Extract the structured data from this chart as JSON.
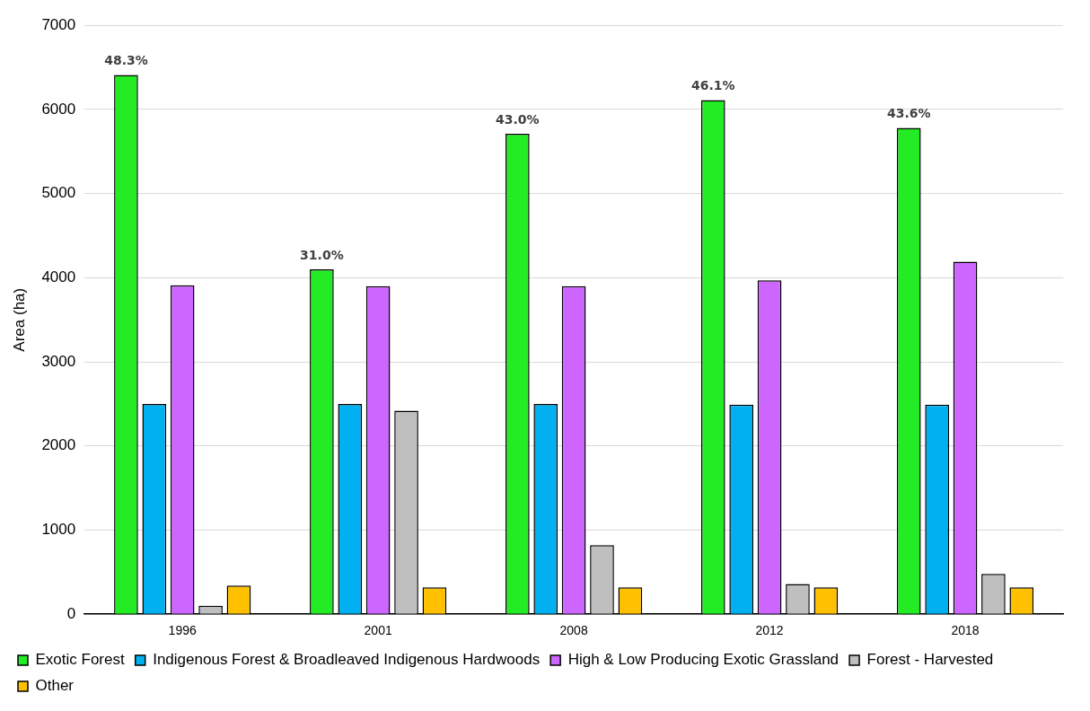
{
  "chart_data": {
    "type": "bar",
    "ylabel": "Area (ha)",
    "categories": [
      "1996",
      "2001",
      "2008",
      "2012",
      "2018"
    ],
    "series": [
      {
        "name": "Exotic Forest",
        "color": "#24ec24",
        "values": [
          6410,
          4100,
          5710,
          6110,
          5780
        ]
      },
      {
        "name": "Indigenous Forest & Broadleaved Indigenous Hardwoods",
        "color": "#00b0f0",
        "values": [
          2500,
          2500,
          2500,
          2490,
          2490
        ]
      },
      {
        "name": "High & Low Producing Exotic Grassland",
        "color": "#cc66ff",
        "values": [
          3910,
          3900,
          3900,
          3970,
          4190
        ]
      },
      {
        "name": "Forest - Harvested",
        "color": "#bfbfbf",
        "values": [
          100,
          2420,
          820,
          360,
          480
        ]
      },
      {
        "name": "Other",
        "color": "#ffc000",
        "values": [
          340,
          320,
          320,
          320,
          320
        ]
      }
    ],
    "ylim": [
      0,
      7000
    ],
    "yticks": [
      0,
      1000,
      2000,
      3000,
      4000,
      5000,
      6000,
      7000
    ],
    "grid": "y",
    "legend": "bottom",
    "annotations": [
      "48.3%",
      "31.0%",
      "43.0%",
      "46.1%",
      "43.6%"
    ]
  }
}
